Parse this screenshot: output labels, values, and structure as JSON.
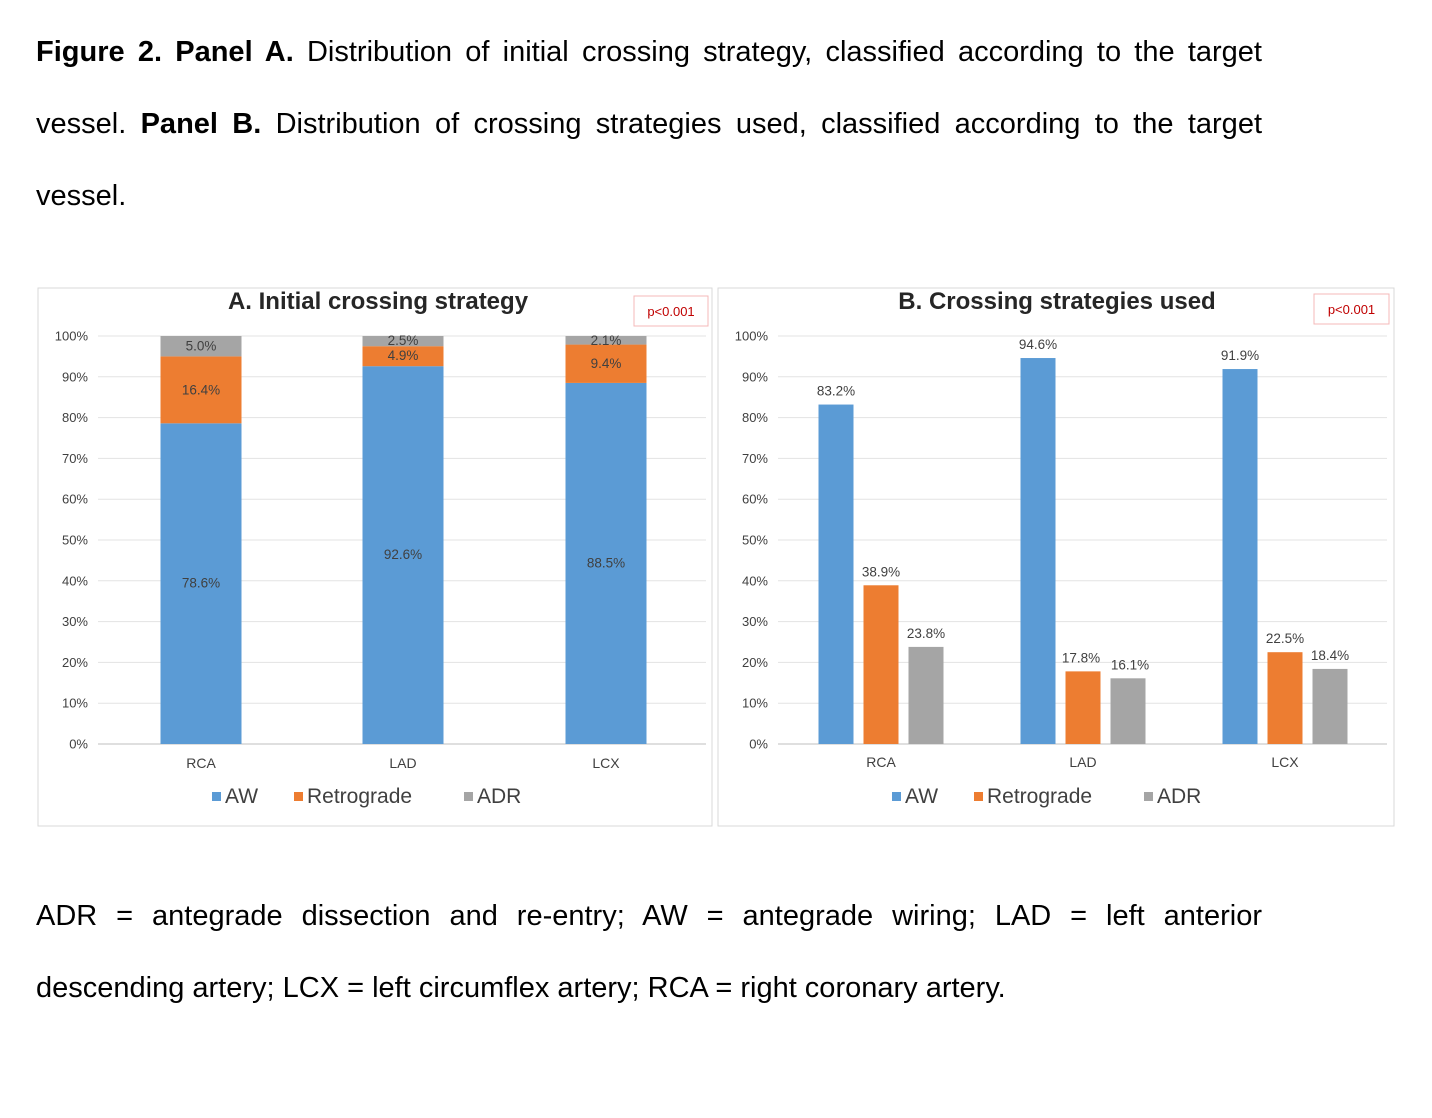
{
  "caption": {
    "fig_label": "Figure 2.",
    "panel_a_label": "Panel A.",
    "panel_a_text": "Distribution of initial crossing strategy, classified according to the target vessel.",
    "panel_b_label": "Panel B.",
    "panel_b_text": "Distribution of crossing strategies used, classified according to the target vessel."
  },
  "footnote": "ADR = antegrade dissection and re-entry; AW = antegrade wiring; LAD = left anterior descending artery; LCX = left circumflex artery; RCA = right coronary artery.",
  "colors": {
    "AW": "#5b9bd5",
    "Retrograde": "#ed7d31",
    "ADR": "#a5a5a5"
  },
  "chart_data": [
    {
      "type": "bar",
      "stacked": true,
      "title": "A. Initial crossing strategy",
      "p_value": "p<0.001",
      "categories": [
        "RCA",
        "LAD",
        "LCX"
      ],
      "ylim": [
        0,
        100
      ],
      "yticks": [
        0,
        10,
        20,
        30,
        40,
        50,
        60,
        70,
        80,
        90,
        100
      ],
      "ytick_labels": [
        "0%",
        "10%",
        "20%",
        "30%",
        "40%",
        "50%",
        "60%",
        "70%",
        "80%",
        "90%",
        "100%"
      ],
      "grid": true,
      "legend": "bottom",
      "series": [
        {
          "name": "AW",
          "values": [
            78.6,
            92.6,
            88.5
          ],
          "labels": [
            "78.6%",
            "92.6%",
            "88.5%"
          ]
        },
        {
          "name": "Retrograde",
          "values": [
            16.4,
            4.9,
            9.4
          ],
          "labels": [
            "16.4%",
            "4.9%",
            "9.4%"
          ]
        },
        {
          "name": "ADR",
          "values": [
            5.0,
            2.5,
            2.1
          ],
          "labels": [
            "5.0%",
            "2.5%",
            "2.1%"
          ]
        }
      ]
    },
    {
      "type": "bar",
      "stacked": false,
      "title": "B. Crossing strategies used",
      "p_value": "p<0.001",
      "categories": [
        "RCA",
        "LAD",
        "LCX"
      ],
      "ylim": [
        0,
        100
      ],
      "yticks": [
        0,
        10,
        20,
        30,
        40,
        50,
        60,
        70,
        80,
        90,
        100
      ],
      "ytick_labels": [
        "0%",
        "10%",
        "20%",
        "30%",
        "40%",
        "50%",
        "60%",
        "70%",
        "80%",
        "90%",
        "100%"
      ],
      "grid": true,
      "legend": "bottom",
      "series": [
        {
          "name": "AW",
          "values": [
            83.2,
            94.6,
            91.9
          ],
          "labels": [
            "83.2%",
            "94.6%",
            "91.9%"
          ]
        },
        {
          "name": "Retrograde",
          "values": [
            38.9,
            17.8,
            22.5
          ],
          "labels": [
            "38.9%",
            "17.8%",
            "22.5%"
          ]
        },
        {
          "name": "ADR",
          "values": [
            23.8,
            16.1,
            18.4
          ],
          "labels": [
            "23.8%",
            "16.1%",
            "18.4%"
          ]
        }
      ]
    }
  ]
}
